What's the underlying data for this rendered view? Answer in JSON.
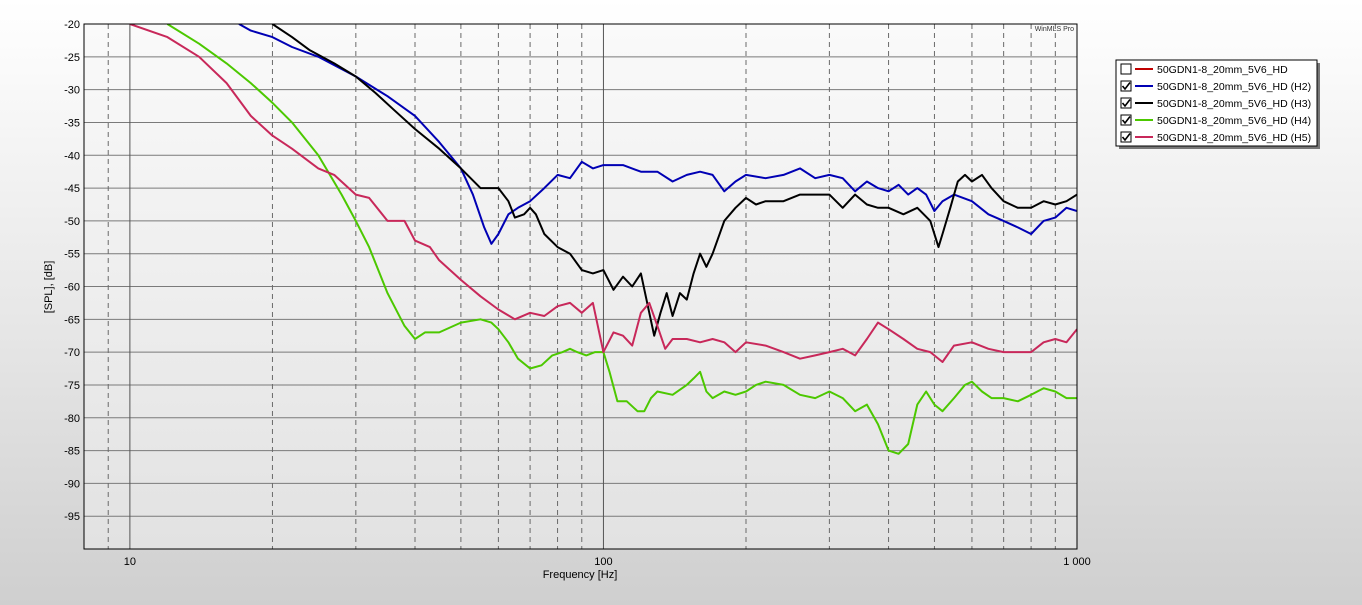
{
  "watermark": "WinMLS Pro",
  "chart_data": {
    "type": "line",
    "title": "",
    "xlabel": "Frequency [Hz]",
    "ylabel": "[SPL], [dB]",
    "xscale": "log",
    "xlim": [
      8,
      1000
    ],
    "ylim": [
      -100,
      -20
    ],
    "grid": true,
    "legend_position": "right",
    "x_tick_labels": [
      {
        "value": 10,
        "label": "10"
      },
      {
        "value": 100,
        "label": "100"
      },
      {
        "value": 1000,
        "label": "1 000"
      }
    ],
    "y_ticks": [
      -20,
      -25,
      -30,
      -35,
      -40,
      -45,
      -50,
      -55,
      -60,
      -65,
      -70,
      -75,
      -80,
      -85,
      -90,
      -95
    ],
    "series": [
      {
        "name": "50GDN1-8_20mm_5V6_HD",
        "checked": false,
        "color": "#c00000",
        "points": []
      },
      {
        "name": "50GDN1-8_20mm_5V6_HD (H2)",
        "checked": true,
        "color": "#0000b4",
        "points": [
          [
            17,
            -20
          ],
          [
            18,
            -21
          ],
          [
            20,
            -22
          ],
          [
            22,
            -23.5
          ],
          [
            25,
            -25
          ],
          [
            30,
            -28
          ],
          [
            35,
            -31
          ],
          [
            40,
            -34
          ],
          [
            45,
            -38
          ],
          [
            50,
            -42
          ],
          [
            53,
            -46
          ],
          [
            56,
            -51
          ],
          [
            58,
            -53.5
          ],
          [
            60,
            -52
          ],
          [
            63,
            -49
          ],
          [
            66,
            -48
          ],
          [
            70,
            -47
          ],
          [
            75,
            -45
          ],
          [
            80,
            -43
          ],
          [
            85,
            -43.5
          ],
          [
            90,
            -41
          ],
          [
            95,
            -42
          ],
          [
            100,
            -41.5
          ],
          [
            110,
            -41.5
          ],
          [
            120,
            -42.5
          ],
          [
            130,
            -42.5
          ],
          [
            140,
            -44
          ],
          [
            150,
            -43
          ],
          [
            160,
            -42.5
          ],
          [
            170,
            -43
          ],
          [
            180,
            -45.5
          ],
          [
            190,
            -44
          ],
          [
            200,
            -43
          ],
          [
            220,
            -43.5
          ],
          [
            240,
            -43
          ],
          [
            260,
            -42
          ],
          [
            280,
            -43.5
          ],
          [
            300,
            -43
          ],
          [
            320,
            -43.5
          ],
          [
            340,
            -45.5
          ],
          [
            360,
            -44
          ],
          [
            380,
            -45
          ],
          [
            400,
            -45.5
          ],
          [
            420,
            -44.5
          ],
          [
            440,
            -46
          ],
          [
            460,
            -45
          ],
          [
            480,
            -46
          ],
          [
            500,
            -48.5
          ],
          [
            520,
            -47
          ],
          [
            550,
            -46
          ],
          [
            600,
            -47
          ],
          [
            650,
            -49
          ],
          [
            700,
            -50
          ],
          [
            750,
            -51
          ],
          [
            800,
            -52
          ],
          [
            850,
            -50
          ],
          [
            900,
            -49.5
          ],
          [
            950,
            -48
          ],
          [
            1000,
            -48.5
          ]
        ]
      },
      {
        "name": "50GDN1-8_20mm_5V6_HD (H3)",
        "checked": true,
        "color": "#000000",
        "points": [
          [
            20,
            -20
          ],
          [
            22,
            -22
          ],
          [
            24,
            -24
          ],
          [
            27,
            -26
          ],
          [
            30,
            -28
          ],
          [
            33,
            -30.5
          ],
          [
            36,
            -33
          ],
          [
            40,
            -36
          ],
          [
            45,
            -39
          ],
          [
            50,
            -42
          ],
          [
            55,
            -45
          ],
          [
            60,
            -45
          ],
          [
            63,
            -47
          ],
          [
            65,
            -49.5
          ],
          [
            68,
            -49
          ],
          [
            70,
            -48
          ],
          [
            72,
            -49
          ],
          [
            75,
            -52
          ],
          [
            80,
            -54
          ],
          [
            85,
            -55
          ],
          [
            90,
            -57.5
          ],
          [
            95,
            -58
          ],
          [
            100,
            -57.5
          ],
          [
            105,
            -60.5
          ],
          [
            110,
            -58.5
          ],
          [
            115,
            -60
          ],
          [
            120,
            -58
          ],
          [
            125,
            -64
          ],
          [
            128,
            -67.5
          ],
          [
            132,
            -64
          ],
          [
            136,
            -61
          ],
          [
            140,
            -64.5
          ],
          [
            145,
            -61
          ],
          [
            150,
            -62
          ],
          [
            155,
            -58
          ],
          [
            160,
            -55
          ],
          [
            165,
            -57
          ],
          [
            170,
            -55
          ],
          [
            180,
            -50
          ],
          [
            190,
            -48
          ],
          [
            200,
            -46.5
          ],
          [
            210,
            -47.5
          ],
          [
            220,
            -47
          ],
          [
            240,
            -47
          ],
          [
            260,
            -46
          ],
          [
            280,
            -46
          ],
          [
            300,
            -46
          ],
          [
            320,
            -48
          ],
          [
            340,
            -46
          ],
          [
            360,
            -47.5
          ],
          [
            380,
            -48
          ],
          [
            400,
            -48
          ],
          [
            430,
            -49
          ],
          [
            460,
            -48
          ],
          [
            490,
            -50
          ],
          [
            510,
            -54
          ],
          [
            520,
            -52
          ],
          [
            540,
            -48
          ],
          [
            560,
            -44
          ],
          [
            580,
            -43
          ],
          [
            600,
            -44
          ],
          [
            630,
            -43
          ],
          [
            660,
            -45
          ],
          [
            700,
            -47
          ],
          [
            750,
            -48
          ],
          [
            800,
            -48
          ],
          [
            850,
            -47
          ],
          [
            900,
            -47.5
          ],
          [
            950,
            -47
          ],
          [
            1000,
            -46
          ]
        ]
      },
      {
        "name": "50GDN1-8_20mm_5V6_HD (H4)",
        "checked": true,
        "color": "#4cc800",
        "points": [
          [
            12,
            -20
          ],
          [
            14,
            -23
          ],
          [
            16,
            -26
          ],
          [
            18,
            -29
          ],
          [
            20,
            -32
          ],
          [
            22,
            -35
          ],
          [
            25,
            -40
          ],
          [
            28,
            -46
          ],
          [
            30,
            -50
          ],
          [
            32,
            -54
          ],
          [
            35,
            -61
          ],
          [
            38,
            -66
          ],
          [
            40,
            -68
          ],
          [
            42,
            -67
          ],
          [
            45,
            -67
          ],
          [
            50,
            -65.5
          ],
          [
            55,
            -65
          ],
          [
            58,
            -65.5
          ],
          [
            60,
            -66.5
          ],
          [
            63,
            -68.5
          ],
          [
            66,
            -71
          ],
          [
            70,
            -72.5
          ],
          [
            74,
            -72
          ],
          [
            78,
            -70.5
          ],
          [
            82,
            -70
          ],
          [
            85,
            -69.5
          ],
          [
            88,
            -70
          ],
          [
            92,
            -70.5
          ],
          [
            96,
            -70
          ],
          [
            100,
            -70
          ],
          [
            103,
            -73
          ],
          [
            107,
            -77.5
          ],
          [
            112,
            -77.5
          ],
          [
            118,
            -79
          ],
          [
            122,
            -79
          ],
          [
            126,
            -77
          ],
          [
            130,
            -76
          ],
          [
            140,
            -76.5
          ],
          [
            150,
            -75
          ],
          [
            155,
            -74
          ],
          [
            160,
            -73
          ],
          [
            165,
            -76
          ],
          [
            170,
            -77
          ],
          [
            180,
            -76
          ],
          [
            190,
            -76.5
          ],
          [
            200,
            -76
          ],
          [
            210,
            -75
          ],
          [
            220,
            -74.5
          ],
          [
            240,
            -75
          ],
          [
            260,
            -76.5
          ],
          [
            280,
            -77
          ],
          [
            300,
            -76
          ],
          [
            320,
            -77
          ],
          [
            340,
            -79
          ],
          [
            360,
            -78
          ],
          [
            380,
            -81
          ],
          [
            400,
            -85
          ],
          [
            420,
            -85.5
          ],
          [
            440,
            -84
          ],
          [
            460,
            -78
          ],
          [
            480,
            -76
          ],
          [
            500,
            -78
          ],
          [
            520,
            -79
          ],
          [
            550,
            -77
          ],
          [
            580,
            -75
          ],
          [
            600,
            -74.5
          ],
          [
            630,
            -76
          ],
          [
            660,
            -77
          ],
          [
            700,
            -77
          ],
          [
            750,
            -77.5
          ],
          [
            800,
            -76.5
          ],
          [
            850,
            -75.5
          ],
          [
            900,
            -76
          ],
          [
            950,
            -77
          ],
          [
            1000,
            -77
          ]
        ]
      },
      {
        "name": "50GDN1-8_20mm_5V6_HD (H5)",
        "checked": true,
        "color": "#c8285a",
        "points": [
          [
            10,
            -20
          ],
          [
            12,
            -22
          ],
          [
            14,
            -25
          ],
          [
            16,
            -29
          ],
          [
            18,
            -34
          ],
          [
            20,
            -37
          ],
          [
            22,
            -39
          ],
          [
            25,
            -42
          ],
          [
            27,
            -43
          ],
          [
            30,
            -46
          ],
          [
            32,
            -46.5
          ],
          [
            35,
            -50
          ],
          [
            38,
            -50
          ],
          [
            40,
            -53
          ],
          [
            43,
            -54
          ],
          [
            45,
            -56
          ],
          [
            50,
            -59
          ],
          [
            55,
            -61.5
          ],
          [
            60,
            -63.5
          ],
          [
            65,
            -65
          ],
          [
            70,
            -64
          ],
          [
            75,
            -64.5
          ],
          [
            80,
            -63
          ],
          [
            85,
            -62.5
          ],
          [
            90,
            -64
          ],
          [
            95,
            -62.5
          ],
          [
            100,
            -70
          ],
          [
            105,
            -67
          ],
          [
            110,
            -67.5
          ],
          [
            115,
            -69
          ],
          [
            120,
            -64
          ],
          [
            125,
            -62.5
          ],
          [
            130,
            -66
          ],
          [
            135,
            -69.5
          ],
          [
            140,
            -68
          ],
          [
            150,
            -68
          ],
          [
            160,
            -68.5
          ],
          [
            170,
            -68
          ],
          [
            180,
            -68.5
          ],
          [
            190,
            -70
          ],
          [
            200,
            -68.5
          ],
          [
            220,
            -69
          ],
          [
            240,
            -70
          ],
          [
            260,
            -71
          ],
          [
            280,
            -70.5
          ],
          [
            300,
            -70
          ],
          [
            320,
            -69.5
          ],
          [
            340,
            -70.5
          ],
          [
            360,
            -68
          ],
          [
            380,
            -65.5
          ],
          [
            400,
            -66.5
          ],
          [
            430,
            -68
          ],
          [
            460,
            -69.5
          ],
          [
            490,
            -70
          ],
          [
            520,
            -71.5
          ],
          [
            550,
            -69
          ],
          [
            600,
            -68.5
          ],
          [
            650,
            -69.5
          ],
          [
            700,
            -70
          ],
          [
            750,
            -70
          ],
          [
            800,
            -70
          ],
          [
            850,
            -68.5
          ],
          [
            900,
            -68
          ],
          [
            950,
            -68.5
          ],
          [
            1000,
            -66.5
          ]
        ]
      }
    ]
  }
}
